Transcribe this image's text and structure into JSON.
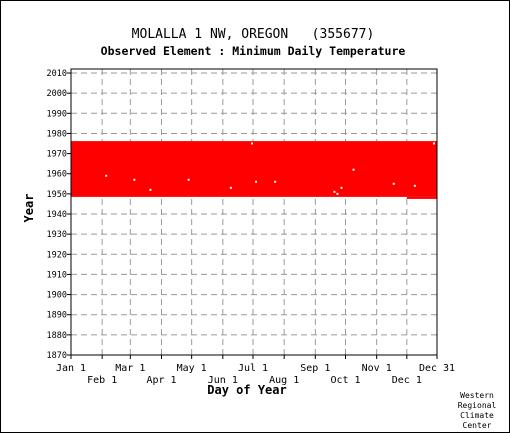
{
  "chart_data": {
    "type": "heatmap",
    "title": "MOLALLA 1 NW, OREGON   (355677)",
    "subtitle": "Observed Element : Minimum Daily Temperature",
    "xlabel": "Day of Year",
    "ylabel": "Year",
    "xlim": [
      1,
      365
    ],
    "ylim": [
      1870,
      2012
    ],
    "x_ticks": [
      {
        "label": "Jan 1",
        "day": 1,
        "row": 1
      },
      {
        "label": "Feb 1",
        "day": 32,
        "row": 2
      },
      {
        "label": "Mar 1",
        "day": 60,
        "row": 1
      },
      {
        "label": "Apr 1",
        "day": 91,
        "row": 2
      },
      {
        "label": "May 1",
        "day": 121,
        "row": 1
      },
      {
        "label": "Jun 1",
        "day": 152,
        "row": 2
      },
      {
        "label": "Jul 1",
        "day": 182,
        "row": 1
      },
      {
        "label": "Aug 1",
        "day": 213,
        "row": 2
      },
      {
        "label": "Sep 1",
        "day": 244,
        "row": 1
      },
      {
        "label": "Oct 1",
        "day": 274,
        "row": 2
      },
      {
        "label": "Nov 1",
        "day": 305,
        "row": 1
      },
      {
        "label": "Dec 1",
        "day": 335,
        "row": 2
      },
      {
        "label": "Dec 31",
        "day": 365,
        "row": 1
      }
    ],
    "y_ticks": [
      1870,
      1880,
      1890,
      1900,
      1910,
      1920,
      1930,
      1940,
      1950,
      1960,
      1970,
      1980,
      1990,
      2000,
      2010
    ],
    "grid": true,
    "data_color": "#ff0000",
    "coverage": [
      {
        "day_start": 1,
        "day_end": 365,
        "year_start": 1948.5,
        "year_end": 1976.2
      },
      {
        "day_start": 335,
        "day_end": 365,
        "year_start": 1947.5,
        "year_end": 1948.5
      }
    ],
    "gaps": [
      {
        "day": 36,
        "year": 1959
      },
      {
        "day": 64,
        "year": 1957
      },
      {
        "day": 80,
        "year": 1952
      },
      {
        "day": 118,
        "year": 1957
      },
      {
        "day": 160,
        "year": 1953
      },
      {
        "day": 181,
        "year": 1975
      },
      {
        "day": 185,
        "year": 1956
      },
      {
        "day": 204,
        "year": 1956
      },
      {
        "day": 263,
        "year": 1951
      },
      {
        "day": 266,
        "year": 1950
      },
      {
        "day": 270,
        "year": 1953
      },
      {
        "day": 282,
        "year": 1962
      },
      {
        "day": 322,
        "year": 1955
      },
      {
        "day": 343,
        "year": 1954
      },
      {
        "day": 362,
        "year": 1975
      }
    ]
  },
  "credit": [
    "Western",
    "Regional",
    "Climate",
    "Center"
  ]
}
